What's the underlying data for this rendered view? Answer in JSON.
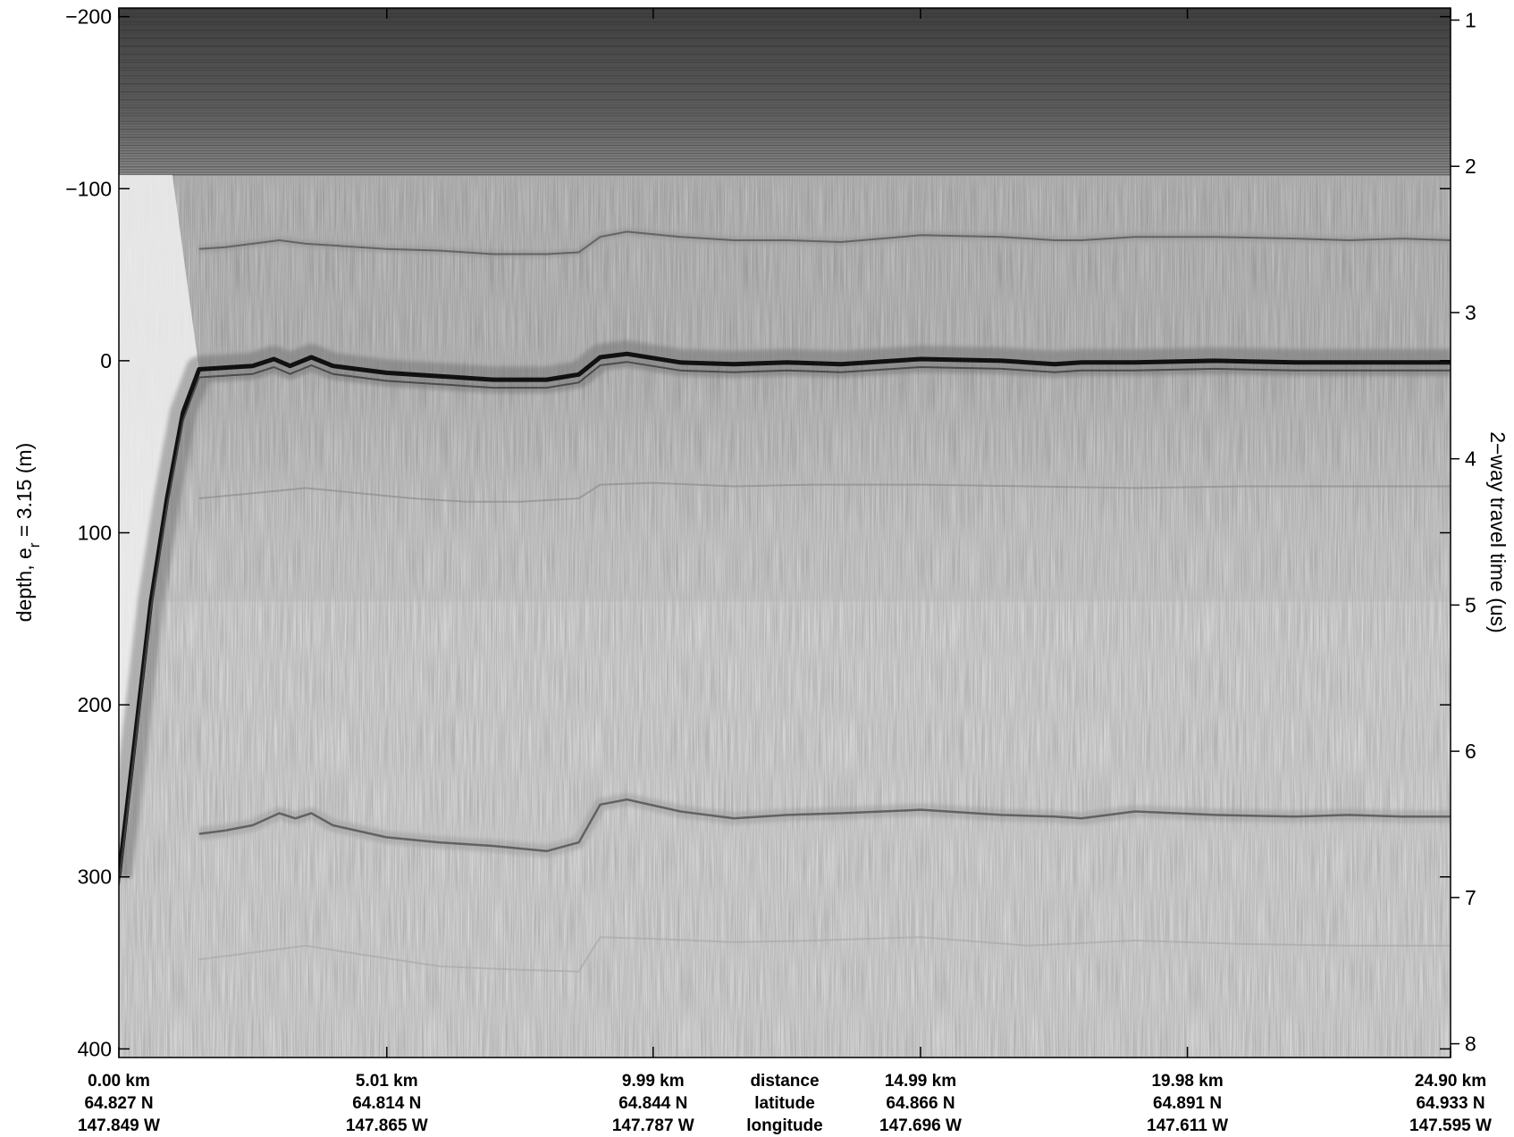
{
  "chart_data": {
    "type": "heatmap",
    "title": "",
    "colormap": "grayscale",
    "left_axis": {
      "label_main": "depth, e",
      "label_sub": "r",
      "label_tail": " = 3.15 (m)",
      "range": [
        -205,
        405
      ],
      "ticks": [
        -200,
        -100,
        0,
        100,
        200,
        300,
        400
      ],
      "tick_labels": [
        "−200",
        "−100",
        "0",
        "100",
        "200",
        "300",
        "400"
      ]
    },
    "right_axis": {
      "label": "2−way travel time (us)",
      "unit": "us",
      "ticks": [
        1,
        2,
        3,
        4,
        5,
        6,
        7,
        8
      ],
      "tick_depths_m": [
        -198,
        -113,
        -28,
        57,
        142,
        227,
        312,
        397
      ],
      "tick_labels": [
        "1",
        "2",
        "3",
        "4",
        "5",
        "6",
        "7",
        "8"
      ]
    },
    "x_axis": {
      "range_km": [
        0,
        24.9
      ],
      "ticks_km": [
        0.0,
        5.01,
        9.99,
        14.99,
        19.98,
        24.9
      ],
      "rows": [
        {
          "name": "distance",
          "labels": [
            "0.00 km",
            "5.01 km",
            "9.99 km",
            "14.99 km",
            "19.98 km",
            "24.90 km"
          ]
        },
        {
          "name": "latitude",
          "labels": [
            "64.827 N",
            "64.814 N",
            "64.844 N",
            "64.866 N",
            "64.891 N",
            "64.933 N"
          ]
        },
        {
          "name": "longitude",
          "labels": [
            "147.849 W",
            "147.865 W",
            "147.787 W",
            "147.696 W",
            "147.611 W",
            "147.595 W"
          ]
        }
      ]
    },
    "surface_band_bottom_depth_m": -108,
    "reflectors": [
      {
        "name": "upper-layer",
        "depth_m": [
          [
            1.5,
            -65
          ],
          [
            2.0,
            -66
          ],
          [
            2.5,
            -68
          ],
          [
            3.0,
            -70
          ],
          [
            3.5,
            -68
          ],
          [
            4.0,
            -67
          ],
          [
            5.0,
            -65
          ],
          [
            6.0,
            -64
          ],
          [
            7.0,
            -62
          ],
          [
            8.0,
            -62
          ],
          [
            8.6,
            -63
          ],
          [
            9.0,
            -72
          ],
          [
            9.5,
            -75
          ],
          [
            10.5,
            -72
          ],
          [
            11.5,
            -70
          ],
          [
            12.5,
            -70
          ],
          [
            13.5,
            -69
          ],
          [
            15.0,
            -73
          ],
          [
            16.5,
            -72
          ],
          [
            17.5,
            -70
          ],
          [
            18.0,
            -70
          ],
          [
            19.0,
            -72
          ],
          [
            20.5,
            -72
          ],
          [
            22.0,
            -71
          ],
          [
            23.0,
            -70
          ],
          [
            24.0,
            -71
          ],
          [
            24.9,
            -70
          ]
        ]
      },
      {
        "name": "primary-reflector",
        "depth_m": [
          [
            0.0,
            300
          ],
          [
            0.3,
            220
          ],
          [
            0.6,
            140
          ],
          [
            0.9,
            80
          ],
          [
            1.2,
            30
          ],
          [
            1.5,
            5
          ],
          [
            2.0,
            4
          ],
          [
            2.5,
            3
          ],
          [
            2.9,
            -1
          ],
          [
            3.2,
            3
          ],
          [
            3.6,
            -2
          ],
          [
            4.0,
            3
          ],
          [
            5.0,
            7
          ],
          [
            6.0,
            9
          ],
          [
            7.0,
            11
          ],
          [
            8.0,
            11
          ],
          [
            8.6,
            8
          ],
          [
            9.0,
            -2
          ],
          [
            9.5,
            -4
          ],
          [
            10.5,
            1
          ],
          [
            11.5,
            2
          ],
          [
            12.5,
            1
          ],
          [
            13.5,
            2
          ],
          [
            15.0,
            -1
          ],
          [
            16.5,
            0
          ],
          [
            17.5,
            2
          ],
          [
            18.0,
            1
          ],
          [
            19.0,
            1
          ],
          [
            20.5,
            0
          ],
          [
            22.0,
            1
          ],
          [
            23.0,
            1
          ],
          [
            24.0,
            1
          ],
          [
            24.9,
            1
          ]
        ]
      },
      {
        "name": "mid-reflector",
        "depth_m": [
          [
            1.5,
            80
          ],
          [
            2.5,
            77
          ],
          [
            3.5,
            74
          ],
          [
            4.5,
            77
          ],
          [
            5.5,
            80
          ],
          [
            6.5,
            82
          ],
          [
            7.5,
            82
          ],
          [
            8.6,
            80
          ],
          [
            9.0,
            72
          ],
          [
            10.0,
            71
          ],
          [
            11.5,
            73
          ],
          [
            13.0,
            72
          ],
          [
            15.0,
            72
          ],
          [
            17.0,
            73
          ],
          [
            19.0,
            74
          ],
          [
            21.0,
            73
          ],
          [
            23.0,
            73
          ],
          [
            24.9,
            73
          ]
        ]
      },
      {
        "name": "basal-reflector",
        "depth_m": [
          [
            1.5,
            275
          ],
          [
            2.0,
            273
          ],
          [
            2.5,
            270
          ],
          [
            3.0,
            263
          ],
          [
            3.3,
            266
          ],
          [
            3.6,
            263
          ],
          [
            4.0,
            270
          ],
          [
            5.0,
            277
          ],
          [
            6.0,
            280
          ],
          [
            7.0,
            282
          ],
          [
            8.0,
            285
          ],
          [
            8.6,
            280
          ],
          [
            9.0,
            258
          ],
          [
            9.5,
            255
          ],
          [
            10.5,
            262
          ],
          [
            11.5,
            266
          ],
          [
            12.5,
            264
          ],
          [
            13.5,
            263
          ],
          [
            15.0,
            261
          ],
          [
            16.5,
            264
          ],
          [
            17.5,
            265
          ],
          [
            18.0,
            266
          ],
          [
            19.0,
            262
          ],
          [
            20.5,
            264
          ],
          [
            22.0,
            265
          ],
          [
            23.0,
            264
          ],
          [
            24.0,
            265
          ],
          [
            24.9,
            265
          ]
        ]
      },
      {
        "name": "deep-reflector",
        "depth_m": [
          [
            1.5,
            348
          ],
          [
            2.5,
            344
          ],
          [
            3.5,
            340
          ],
          [
            4.5,
            345
          ],
          [
            6.0,
            352
          ],
          [
            7.5,
            354
          ],
          [
            8.6,
            355
          ],
          [
            9.0,
            335
          ],
          [
            10.0,
            336
          ],
          [
            11.5,
            338
          ],
          [
            13.0,
            337
          ],
          [
            15.0,
            335
          ],
          [
            17.0,
            340
          ],
          [
            19.0,
            337
          ],
          [
            21.0,
            339
          ],
          [
            23.0,
            340
          ],
          [
            24.9,
            340
          ]
        ]
      }
    ],
    "grid": false
  }
}
